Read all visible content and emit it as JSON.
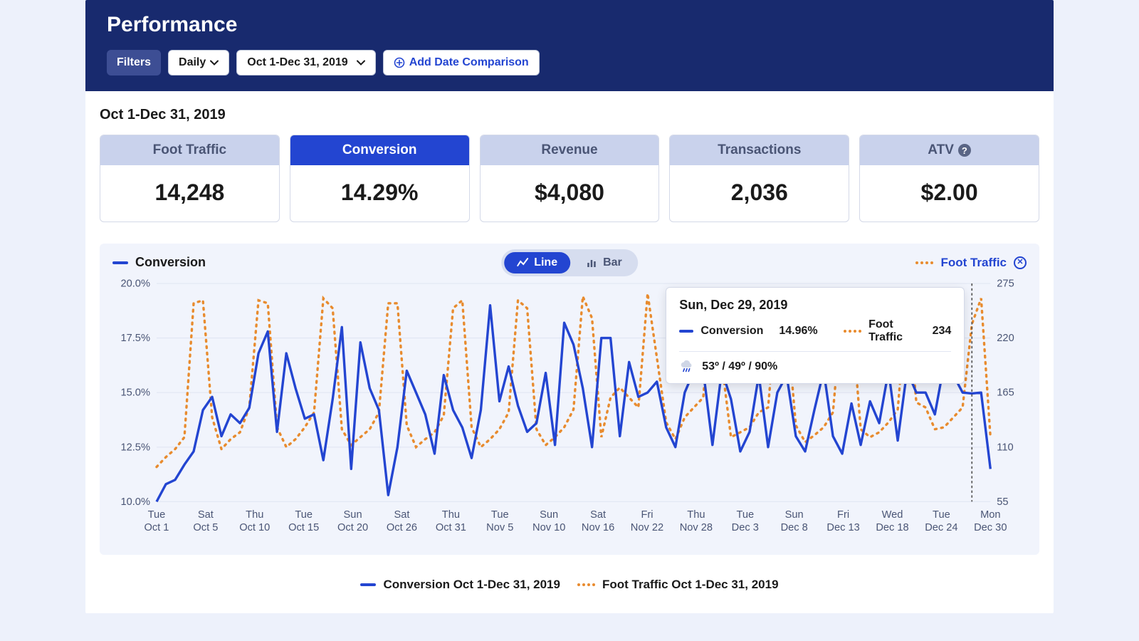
{
  "header": {
    "title": "Performance",
    "filters_label": "Filters",
    "period_label": "Daily",
    "daterange_label": "Oct 1-Dec 31, 2019",
    "add_comparison_label": "Add Date Comparison"
  },
  "subheader": {
    "range_text": "Oct 1-Dec 31, 2019"
  },
  "kpis": [
    {
      "label": "Foot Traffic",
      "value": "14,248",
      "active": false,
      "help": false
    },
    {
      "label": "Conversion",
      "value": "14.29%",
      "active": true,
      "help": false
    },
    {
      "label": "Revenue",
      "value": "$4,080",
      "active": false,
      "help": false
    },
    {
      "label": "Transactions",
      "value": "2,036",
      "active": false,
      "help": false
    },
    {
      "label": "ATV",
      "value": "$2.00",
      "active": false,
      "help": true
    }
  ],
  "chart": {
    "series_left_label": "Conversion",
    "series_right_label": "Foot Traffic",
    "toggle": {
      "line": "Line",
      "bar": "Bar",
      "active": "line"
    },
    "y_left": {
      "min": 10.0,
      "max": 20.0,
      "step": 2.5,
      "fmt": "%",
      "ticks": [
        "10.0%",
        "12.5%",
        "15.0%",
        "17.5%",
        "20.0%"
      ]
    },
    "y_right": {
      "min": 55,
      "max": 275,
      "step": 55,
      "ticks": [
        "55",
        "110",
        "165",
        "220",
        "275"
      ]
    },
    "colors": {
      "conversion": "#2345d1",
      "foot_traffic": "#e88b2e",
      "grid": "#e1e6f3",
      "card_bg": "#f1f4fc",
      "header_bg": "#182a6e",
      "kpi_head_inactive": "#c9d2ec",
      "kpi_head_active": "#2345d1"
    },
    "x_labels": [
      {
        "d": "Tue",
        "s": "Oct 1"
      },
      {
        "d": "Sat",
        "s": "Oct 5"
      },
      {
        "d": "Thu",
        "s": "Oct 10"
      },
      {
        "d": "Tue",
        "s": "Oct 15"
      },
      {
        "d": "Sun",
        "s": "Oct 20"
      },
      {
        "d": "Sat",
        "s": "Oct 26"
      },
      {
        "d": "Thu",
        "s": "Oct 31"
      },
      {
        "d": "Tue",
        "s": "Nov 5"
      },
      {
        "d": "Sun",
        "s": "Nov 10"
      },
      {
        "d": "Sat",
        "s": "Nov 16"
      },
      {
        "d": "Fri",
        "s": "Nov 22"
      },
      {
        "d": "Thu",
        "s": "Nov 28"
      },
      {
        "d": "Tue",
        "s": "Dec 3"
      },
      {
        "d": "Sun",
        "s": "Dec 8"
      },
      {
        "d": "Fri",
        "s": "Dec 13"
      },
      {
        "d": "Wed",
        "s": "Dec 18"
      },
      {
        "d": "Tue",
        "s": "Dec 24"
      },
      {
        "d": "Mon",
        "s": "Dec 30"
      }
    ],
    "conversion_values": [
      10.0,
      10.8,
      11.0,
      11.7,
      12.3,
      14.2,
      14.8,
      13.0,
      14.0,
      13.6,
      14.3,
      16.8,
      17.8,
      13.2,
      16.8,
      15.2,
      13.8,
      14.0,
      11.9,
      14.7,
      18.0,
      11.5,
      17.3,
      15.2,
      14.2,
      10.3,
      12.5,
      16.0,
      15.0,
      14.0,
      12.2,
      15.8,
      14.2,
      13.4,
      12.0,
      14.2,
      19.0,
      14.6,
      16.2,
      14.4,
      13.2,
      13.6,
      15.9,
      12.6,
      18.2,
      17.2,
      15.2,
      12.5,
      17.5,
      17.5,
      13.0,
      16.4,
      14.8,
      15.0,
      15.5,
      13.4,
      12.5,
      15.0,
      16.0,
      16.0,
      12.6,
      16.0,
      14.7,
      12.3,
      13.2,
      15.8,
      12.5,
      15.0,
      15.8,
      13.0,
      12.3,
      14.2,
      16.0,
      13.0,
      12.2,
      14.5,
      12.6,
      14.6,
      13.6,
      16.0,
      12.8,
      16.0,
      15.0,
      15.0,
      14.0,
      16.3,
      15.8,
      15.0,
      14.96,
      15.0,
      11.5
    ],
    "foot_traffic_values": [
      90,
      100,
      108,
      120,
      255,
      258,
      140,
      108,
      118,
      125,
      150,
      258,
      255,
      130,
      110,
      118,
      130,
      145,
      260,
      250,
      128,
      112,
      120,
      128,
      145,
      255,
      255,
      132,
      110,
      118,
      125,
      142,
      250,
      258,
      130,
      110,
      118,
      128,
      145,
      258,
      250,
      128,
      112,
      120,
      130,
      148,
      262,
      240,
      120,
      160,
      170,
      160,
      150,
      265,
      200,
      135,
      118,
      140,
      150,
      160,
      268,
      195,
      120,
      125,
      130,
      145,
      150,
      258,
      240,
      132,
      115,
      122,
      130,
      145,
      252,
      245,
      128,
      120,
      125,
      135,
      148,
      260,
      155,
      150,
      128,
      130,
      140,
      150,
      234,
      260,
      120
    ],
    "hover_index": 88
  },
  "tooltip": {
    "date": "Sun, Dec 29, 2019",
    "conv_label": "Conversion",
    "conv_value": "14.96%",
    "ft_label": "Foot Traffic",
    "ft_value": "234",
    "weather": "53º / 49º / 90%"
  },
  "footer_legend": {
    "a": "Conversion Oct 1-Dec 31, 2019",
    "b": "Foot Traffic Oct 1-Dec 31, 2019"
  }
}
